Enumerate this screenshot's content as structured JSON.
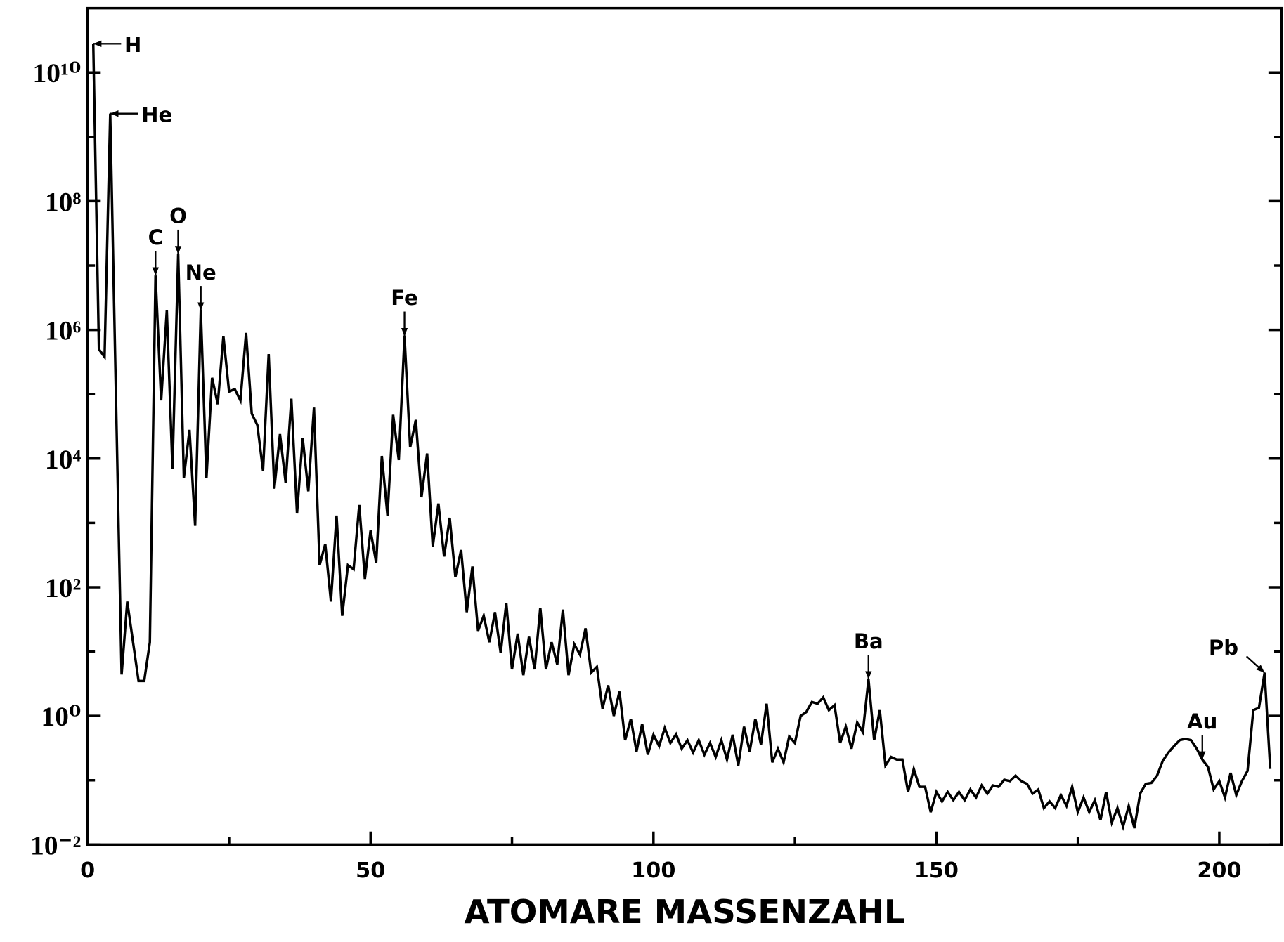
{
  "chart_data": {
    "type": "line",
    "x_label": "ATOMARE MASSENZAHL",
    "log_y": true,
    "color": "#000000",
    "xlim": [
      0,
      211
    ],
    "xticks": [
      0,
      50,
      100,
      150,
      200
    ],
    "xminorticks": [
      25,
      75,
      125,
      175
    ],
    "ylim": [
      0.01,
      100000000000.0
    ],
    "yticks": [
      {
        "value": 0.01,
        "label": "10⁻²"
      },
      {
        "value": 1,
        "label": "10⁰"
      },
      {
        "value": 100,
        "label": "10²"
      },
      {
        "value": 10000,
        "label": "10⁴"
      },
      {
        "value": 1000000,
        "label": "10⁶"
      },
      {
        "value": 100000000,
        "label": "10⁸"
      },
      {
        "value": 10000000000,
        "label": "10¹⁰"
      }
    ],
    "yminorticks": [
      0.1,
      10,
      1000,
      100000,
      10000000,
      1000000000
    ],
    "x": [
      1,
      2,
      3,
      4,
      6,
      7,
      9,
      10,
      11,
      12,
      13,
      14,
      15,
      16,
      17,
      18,
      19,
      20,
      21,
      22,
      23,
      24,
      25,
      26,
      27,
      28,
      29,
      30,
      31,
      32,
      33,
      34,
      35,
      36,
      37,
      38,
      39,
      40,
      41,
      42,
      43,
      44,
      45,
      46,
      47,
      48,
      49,
      50,
      51,
      52,
      53,
      54,
      55,
      56,
      57,
      58,
      59,
      60,
      61,
      62,
      63,
      64,
      65,
      66,
      67,
      68,
      69,
      70,
      71,
      72,
      73,
      74,
      75,
      76,
      77,
      78,
      79,
      80,
      81,
      82,
      83,
      84,
      85,
      86,
      87,
      88,
      89,
      90,
      91,
      92,
      93,
      94,
      95,
      96,
      97,
      98,
      99,
      100,
      101,
      102,
      103,
      104,
      105,
      106,
      107,
      108,
      109,
      110,
      111,
      112,
      113,
      114,
      115,
      116,
      117,
      118,
      119,
      120,
      121,
      122,
      123,
      124,
      125,
      126,
      127,
      128,
      129,
      130,
      131,
      132,
      133,
      134,
      135,
      136,
      137,
      138,
      139,
      140,
      141,
      142,
      143,
      144,
      145,
      146,
      147,
      148,
      149,
      150,
      151,
      152,
      153,
      154,
      155,
      156,
      157,
      158,
      159,
      160,
      161,
      162,
      163,
      164,
      165,
      166,
      167,
      168,
      169,
      170,
      171,
      172,
      173,
      174,
      175,
      176,
      177,
      178,
      179,
      180,
      181,
      182,
      183,
      184,
      185,
      186,
      187,
      188,
      189,
      190,
      191,
      192,
      193,
      194,
      195,
      196,
      197,
      198,
      199,
      200,
      201,
      202,
      203,
      204,
      205,
      206,
      207,
      208,
      209
    ],
    "values": [
      28000000000.0,
      500000.0,
      380000.0,
      2300000000.0,
      4.4,
      60,
      3.5,
      3.5,
      14,
      7000000.0,
      80000.0,
      2000000.0,
      7000.0,
      15000000.0,
      5000.0,
      28000.0,
      900,
      2000000.0,
      5000.0,
      180000.0,
      70000.0,
      800000.0,
      110000.0,
      120000.0,
      80000.0,
      900000.0,
      50000.0,
      33000.0,
      6500.0,
      420000.0,
      3400.0,
      24000.0,
      4200.0,
      85000.0,
      1400.0,
      21000.0,
      3100.0,
      62000.0,
      220,
      470,
      60,
      1300.0,
      36,
      220,
      190,
      1900.0,
      135,
      760,
      240,
      11000.0,
      1300.0,
      48000.0,
      9500.0,
      800000.0,
      15000.0,
      40000.0,
      2500.0,
      12000.0,
      430,
      2000.0,
      300,
      1200.0,
      145,
      380,
      41,
      210,
      21,
      36,
      14,
      41,
      9.5,
      57,
      5.3,
      19,
      4.3,
      17,
      5.3,
      48,
      5.3,
      14,
      6.3,
      45,
      4.3,
      13,
      9,
      23,
      4.7,
      5.8,
      1.3,
      3,
      1,
      2.4,
      0.42,
      0.9,
      0.28,
      0.75,
      0.25,
      0.51,
      0.34,
      0.65,
      0.38,
      0.52,
      0.31,
      0.42,
      0.27,
      0.42,
      0.25,
      0.38,
      0.23,
      0.42,
      0.21,
      0.51,
      0.17,
      0.68,
      0.28,
      0.9,
      0.36,
      1.55,
      0.19,
      0.31,
      0.19,
      0.48,
      0.38,
      1.0,
      1.15,
      1.65,
      1.55,
      1.95,
      1.23,
      1.47,
      0.38,
      0.68,
      0.31,
      0.79,
      0.56,
      3.7,
      0.42,
      1.23,
      0.17,
      0.23,
      0.21,
      0.21,
      0.066,
      0.15,
      0.079,
      0.079,
      0.032,
      0.066,
      0.047,
      0.066,
      0.049,
      0.066,
      0.049,
      0.072,
      0.054,
      0.083,
      0.062,
      0.083,
      0.079,
      0.102,
      0.097,
      0.118,
      0.097,
      0.088,
      0.062,
      0.072,
      0.037,
      0.047,
      0.037,
      0.059,
      0.04,
      0.079,
      0.032,
      0.054,
      0.032,
      0.049,
      0.024,
      0.066,
      0.022,
      0.037,
      0.019,
      0.04,
      0.018,
      0.062,
      0.088,
      0.091,
      0.118,
      0.2,
      0.27,
      0.34,
      0.42,
      0.44,
      0.42,
      0.31,
      0.21,
      0.16,
      0.072,
      0.097,
      0.054,
      0.13,
      0.059,
      0.097,
      0.14,
      1.23,
      1.34,
      4.7,
      0.15
    ],
    "annotations": [
      {
        "text": "H",
        "x": 1
      },
      {
        "text": "He",
        "x": 4
      },
      {
        "text": "C",
        "x": 12
      },
      {
        "text": "O",
        "x": 16
      },
      {
        "text": "Ne",
        "x": 20
      },
      {
        "text": "Fe",
        "x": 56
      },
      {
        "text": "Ba",
        "x": 138
      },
      {
        "text": "Au",
        "x": 197
      },
      {
        "text": "Pb",
        "x": 208
      }
    ]
  }
}
